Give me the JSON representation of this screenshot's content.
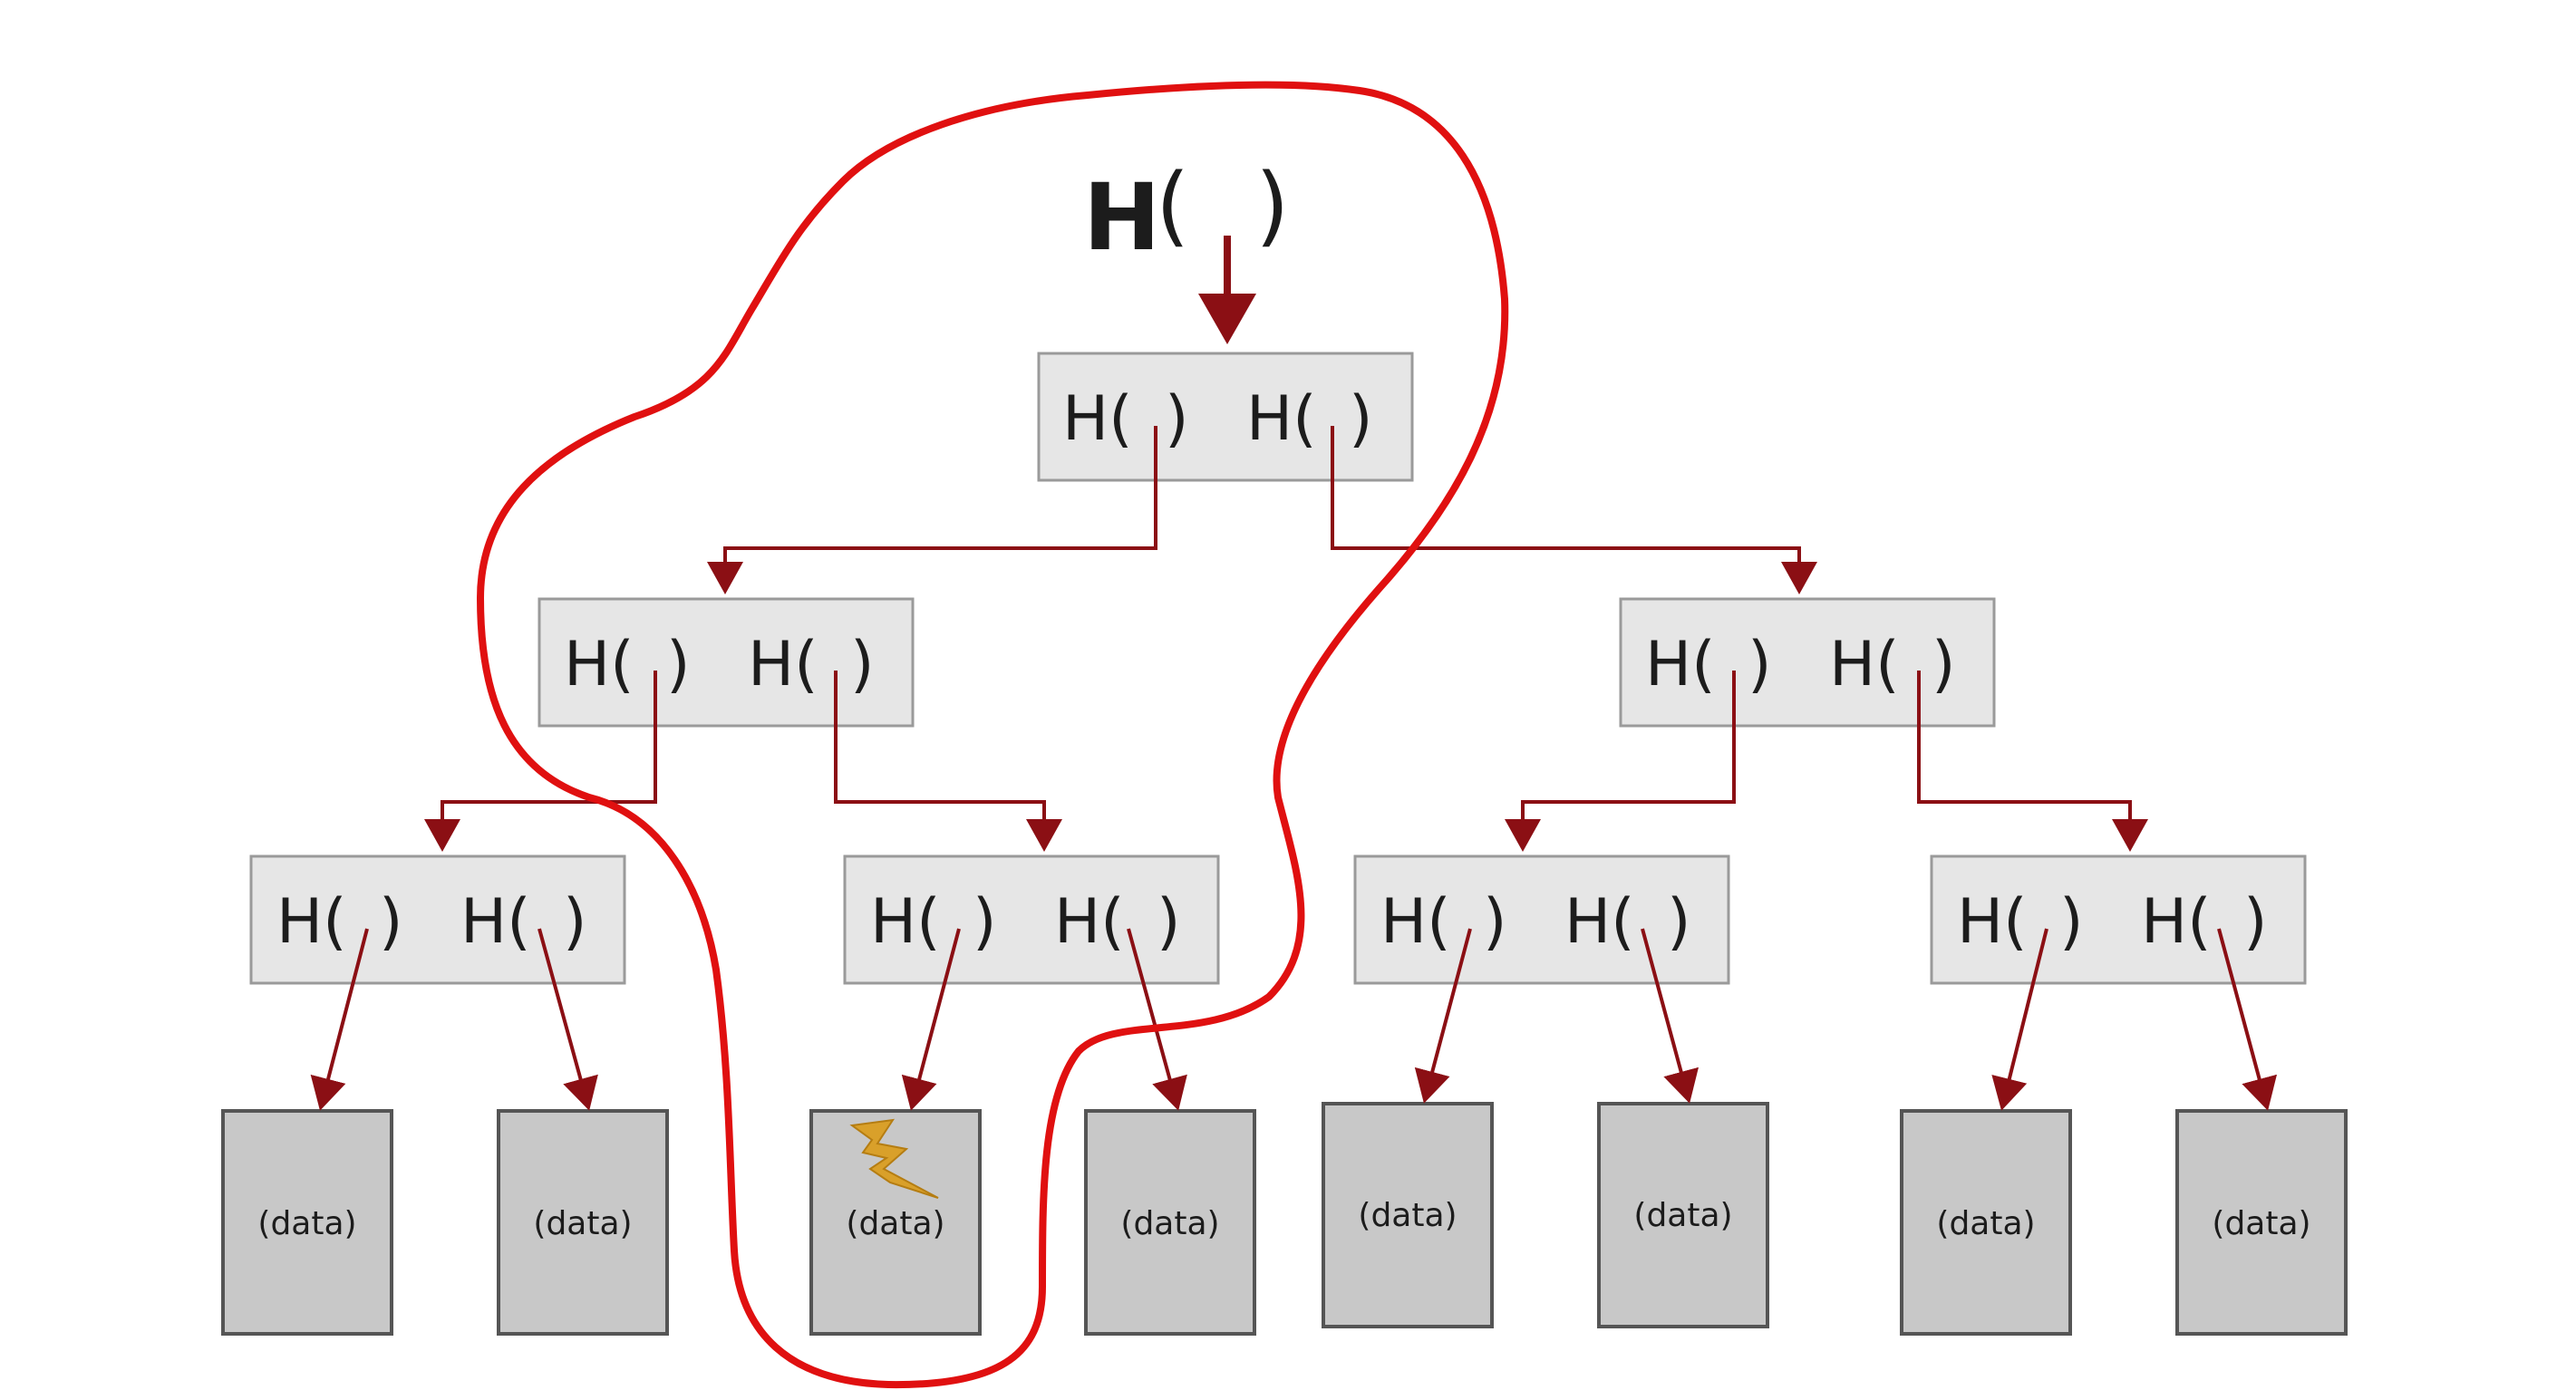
{
  "root": {
    "hash_label": "H",
    "open_paren": "(",
    "close_paren": ")"
  },
  "node": {
    "hash_label": "H(",
    "close_paren": ")"
  },
  "leaf": {
    "label": "(data)"
  },
  "colors": {
    "arrow": "#8b0f14",
    "highlight_outline": "#e01010",
    "box_fill": "#e6e6e6",
    "box_stroke": "#9a9a9a",
    "leaf_fill": "#c8c8c8",
    "leaf_stroke": "#555555",
    "lightning": "#d9a02a"
  },
  "icons": {
    "modified_leaf": "lightning-bolt-icon"
  }
}
